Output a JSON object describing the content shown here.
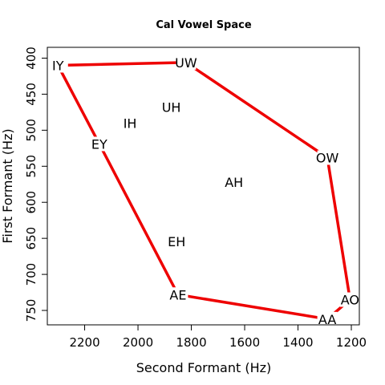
{
  "chart_data": {
    "type": "scatter",
    "title": "Cal Vowel Space",
    "xlabel": "Second Formant (Hz)",
    "ylabel": "First Formant (Hz)",
    "xlim": [
      2340,
      1170
    ],
    "ylim": [
      385,
      770
    ],
    "x_reversed": true,
    "y_reversed": true,
    "x_ticks": [
      2200,
      2000,
      1800,
      1600,
      1400,
      1200
    ],
    "y_ticks": [
      400,
      450,
      500,
      550,
      600,
      650,
      700,
      750
    ],
    "grid": false,
    "line_color": "#ee0000",
    "points": [
      {
        "label": "IY",
        "x": 2300,
        "y": 410
      },
      {
        "label": "UW",
        "x": 1820,
        "y": 406
      },
      {
        "label": "UH",
        "x": 1875,
        "y": 468
      },
      {
        "label": "IH",
        "x": 2030,
        "y": 490
      },
      {
        "label": "EY",
        "x": 2145,
        "y": 519
      },
      {
        "label": "OW",
        "x": 1290,
        "y": 538
      },
      {
        "label": "AH",
        "x": 1640,
        "y": 572
      },
      {
        "label": "EH",
        "x": 1855,
        "y": 654
      },
      {
        "label": "AE",
        "x": 1850,
        "y": 728
      },
      {
        "label": "AO",
        "x": 1205,
        "y": 735
      },
      {
        "label": "AA",
        "x": 1290,
        "y": 762
      }
    ],
    "boundary": [
      "IY",
      "UW",
      "OW",
      "AO",
      "AA",
      "AE",
      "EY",
      "IY"
    ]
  }
}
